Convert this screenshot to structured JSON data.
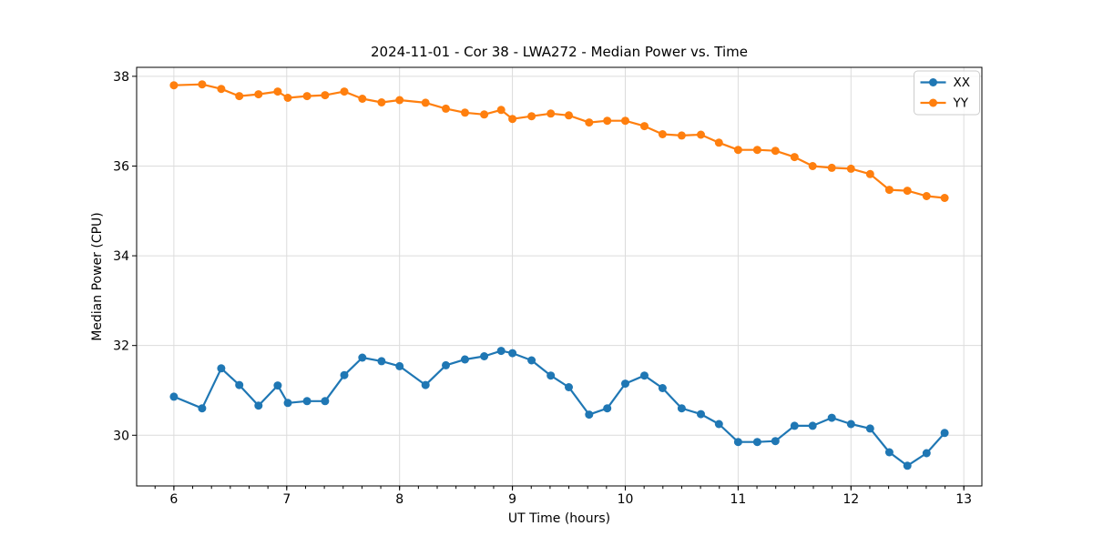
{
  "figure": {
    "background": "#ffffff",
    "plot_background": "#ffffff",
    "spine_color": "#000000",
    "grid_color": "#dcdcdc",
    "tick_color": "#000000"
  },
  "chart_data": {
    "type": "line",
    "title": "2024-11-01 - Cor 38 - LWA272 - Median Power vs. Time",
    "xlabel": "UT Time (hours)",
    "ylabel": "Median Power (CPU)",
    "xlim": [
      5.67,
      13.16
    ],
    "ylim": [
      28.87,
      38.2
    ],
    "xticks": [
      6,
      7,
      8,
      9,
      10,
      11,
      12,
      13
    ],
    "yticks": [
      30,
      32,
      34,
      36,
      38
    ],
    "x_minor_step": 0.16667,
    "grid": true,
    "legend": {
      "position": "upper right"
    },
    "x": [
      6.0,
      6.25,
      6.42,
      6.58,
      6.75,
      6.92,
      7.01,
      7.18,
      7.34,
      7.51,
      7.67,
      7.84,
      8.0,
      8.23,
      8.41,
      8.58,
      8.75,
      8.9,
      9.0,
      9.17,
      9.34,
      9.5,
      9.68,
      9.84,
      10.0,
      10.17,
      10.33,
      10.5,
      10.67,
      10.83,
      11.0,
      11.17,
      11.33,
      11.5,
      11.66,
      11.83,
      12.0,
      12.17,
      12.34,
      12.5,
      12.67,
      12.83
    ],
    "series": [
      {
        "name": "XX",
        "color": "#1f77b4",
        "marker": "circle",
        "values": [
          30.86,
          30.6,
          31.49,
          31.12,
          30.66,
          31.11,
          30.72,
          30.76,
          30.76,
          31.34,
          31.73,
          31.65,
          31.54,
          31.12,
          31.56,
          31.69,
          31.76,
          31.88,
          31.83,
          31.67,
          31.33,
          31.07,
          30.46,
          30.6,
          31.15,
          31.33,
          31.05,
          30.6,
          30.47,
          30.25,
          29.85,
          29.85,
          29.87,
          30.21,
          30.21,
          30.39,
          30.25,
          30.15,
          29.62,
          29.32,
          29.6,
          30.05
        ]
      },
      {
        "name": "YY",
        "color": "#ff7f0e",
        "marker": "circle",
        "values": [
          37.8,
          37.82,
          37.72,
          37.56,
          37.6,
          37.66,
          37.52,
          37.56,
          37.58,
          37.66,
          37.5,
          37.42,
          37.47,
          37.41,
          37.28,
          37.19,
          37.15,
          37.25,
          37.05,
          37.11,
          37.17,
          37.13,
          36.97,
          37.01,
          37.01,
          36.89,
          36.71,
          36.68,
          36.7,
          36.52,
          36.36,
          36.36,
          36.34,
          36.2,
          36.0,
          35.96,
          35.94,
          35.82,
          35.47,
          35.45,
          35.33,
          35.29
        ]
      }
    ]
  }
}
